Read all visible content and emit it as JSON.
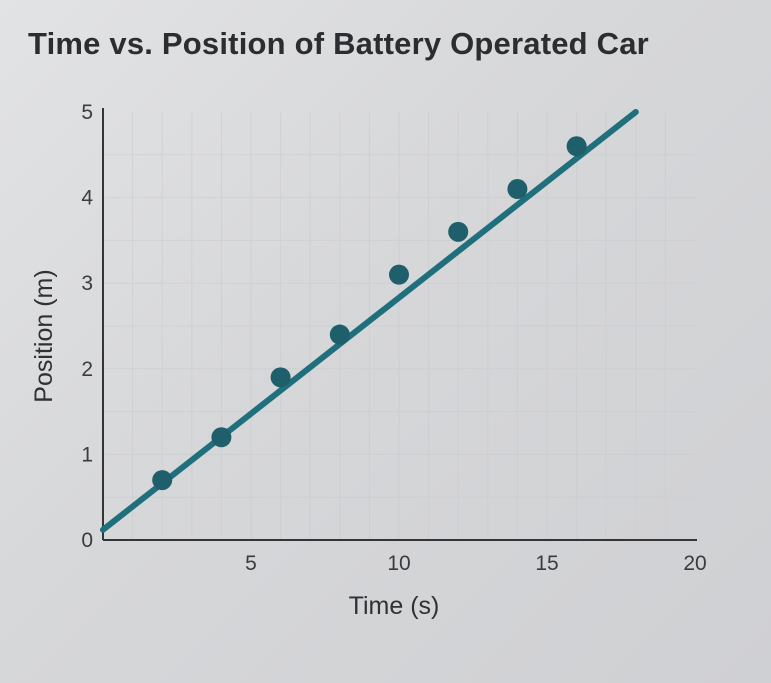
{
  "chart_data": {
    "type": "scatter",
    "title": "Time vs. Position of Battery Operated Car",
    "xlabel": "Time (s)",
    "ylabel": "Position (m)",
    "xlim": [
      0,
      20
    ],
    "ylim": [
      0,
      5
    ],
    "xticks": [
      "5",
      "10",
      "15",
      "20"
    ],
    "yticks": [
      "0",
      "1",
      "2",
      "3",
      "4",
      "5"
    ],
    "grid": true,
    "series": [
      {
        "points": [
          {
            "x": 2,
            "y": 0.7
          },
          {
            "x": 4,
            "y": 1.2
          },
          {
            "x": 6,
            "y": 1.9
          },
          {
            "x": 8,
            "y": 2.4
          },
          {
            "x": 10,
            "y": 3.1
          },
          {
            "x": 12,
            "y": 3.6
          },
          {
            "x": 14,
            "y": 4.1
          },
          {
            "x": 16,
            "y": 4.6
          }
        ]
      }
    ],
    "trendline": {
      "x0": 0,
      "y0": 0.12,
      "x1": 18,
      "y1": 5.0
    },
    "colors": {
      "points": "#1f5f6b",
      "line": "#1f6f7c",
      "axis": "#333538",
      "grid": "#c9cacc"
    }
  }
}
